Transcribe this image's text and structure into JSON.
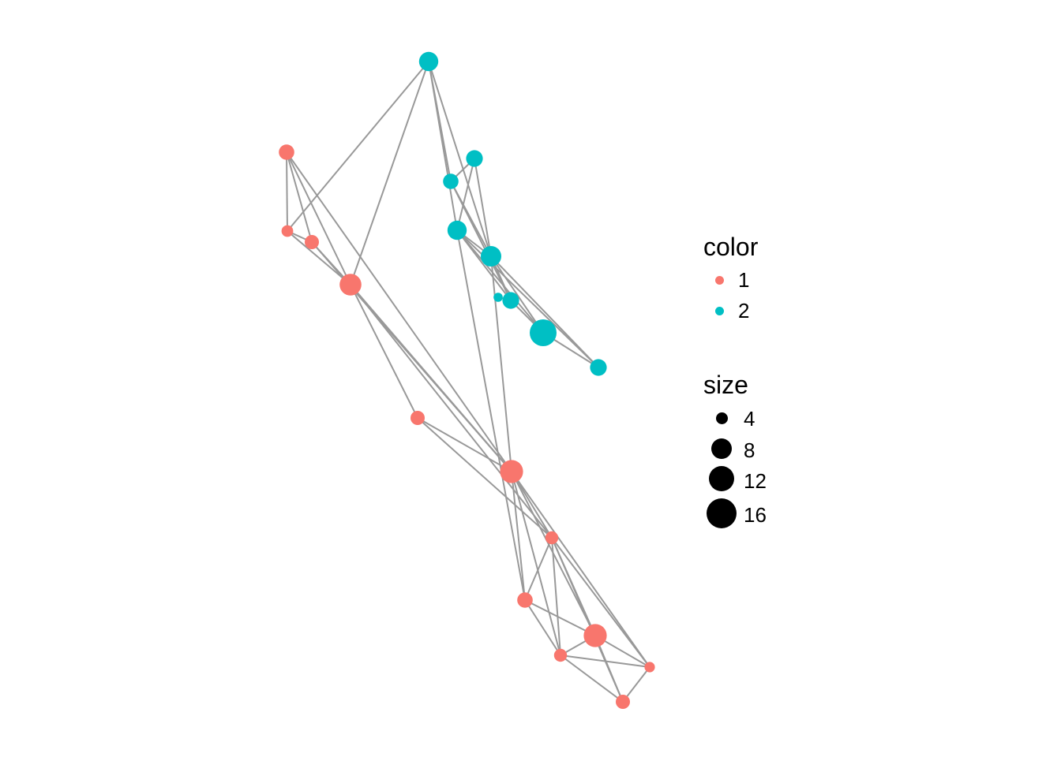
{
  "colors": {
    "group1": "#F8766D",
    "group2": "#00BFC4",
    "edge": "#999999",
    "size_key": "#000000"
  },
  "graph": {
    "nodes": [
      {
        "id": "n1",
        "group": 2,
        "size": 9
      },
      {
        "id": "n2",
        "group": 2,
        "size": 7
      },
      {
        "id": "n3",
        "group": 2,
        "size": 6
      },
      {
        "id": "n4",
        "group": 2,
        "size": 9
      },
      {
        "id": "n5",
        "group": 2,
        "size": 10
      },
      {
        "id": "n6",
        "group": 2,
        "size": 1
      },
      {
        "id": "n7",
        "group": 2,
        "size": 7
      },
      {
        "id": "n8",
        "group": 2,
        "size": 15
      },
      {
        "id": "n9",
        "group": 2,
        "size": 7
      },
      {
        "id": "n10",
        "group": 1,
        "size": 6
      },
      {
        "id": "n11",
        "group": 1,
        "size": 3
      },
      {
        "id": "n12",
        "group": 1,
        "size": 5
      },
      {
        "id": "n13",
        "group": 1,
        "size": 11
      },
      {
        "id": "n14",
        "group": 1,
        "size": 5
      },
      {
        "id": "n15",
        "group": 1,
        "size": 12
      },
      {
        "id": "n16",
        "group": 1,
        "size": 4
      },
      {
        "id": "n17",
        "group": 1,
        "size": 6
      },
      {
        "id": "n18",
        "group": 1,
        "size": 12
      },
      {
        "id": "n19",
        "group": 1,
        "size": 4
      },
      {
        "id": "n20",
        "group": 1,
        "size": 2
      },
      {
        "id": "n21",
        "group": 1,
        "size": 5
      }
    ],
    "edges": [
      [
        "n1",
        "n3"
      ],
      [
        "n1",
        "n5"
      ],
      [
        "n1",
        "n4"
      ],
      [
        "n1",
        "n11"
      ],
      [
        "n1",
        "n13"
      ],
      [
        "n2",
        "n3"
      ],
      [
        "n2",
        "n4"
      ],
      [
        "n2",
        "n5"
      ],
      [
        "n3",
        "n5"
      ],
      [
        "n3",
        "n7"
      ],
      [
        "n4",
        "n5"
      ],
      [
        "n4",
        "n7"
      ],
      [
        "n4",
        "n8"
      ],
      [
        "n4",
        "n9"
      ],
      [
        "n4",
        "n17"
      ],
      [
        "n5",
        "n7"
      ],
      [
        "n5",
        "n8"
      ],
      [
        "n5",
        "n9"
      ],
      [
        "n5",
        "n15"
      ],
      [
        "n6",
        "n7"
      ],
      [
        "n7",
        "n8"
      ],
      [
        "n8",
        "n9"
      ],
      [
        "n10",
        "n11"
      ],
      [
        "n10",
        "n12"
      ],
      [
        "n10",
        "n13"
      ],
      [
        "n10",
        "n15"
      ],
      [
        "n11",
        "n12"
      ],
      [
        "n11",
        "n13"
      ],
      [
        "n12",
        "n13"
      ],
      [
        "n12",
        "n15"
      ],
      [
        "n13",
        "n14"
      ],
      [
        "n13",
        "n15"
      ],
      [
        "n13",
        "n16"
      ],
      [
        "n14",
        "n15"
      ],
      [
        "n14",
        "n16"
      ],
      [
        "n15",
        "n16"
      ],
      [
        "n15",
        "n17"
      ],
      [
        "n15",
        "n19"
      ],
      [
        "n15",
        "n18"
      ],
      [
        "n15",
        "n20"
      ],
      [
        "n16",
        "n17"
      ],
      [
        "n16",
        "n18"
      ],
      [
        "n16",
        "n19"
      ],
      [
        "n16",
        "n20"
      ],
      [
        "n16",
        "n21"
      ],
      [
        "n17",
        "n18"
      ],
      [
        "n17",
        "n19"
      ],
      [
        "n18",
        "n19"
      ],
      [
        "n18",
        "n20"
      ],
      [
        "n18",
        "n21"
      ],
      [
        "n19",
        "n20"
      ],
      [
        "n19",
        "n21"
      ],
      [
        "n20",
        "n21"
      ]
    ]
  },
  "legend": {
    "color": {
      "title": "color",
      "items": [
        {
          "label": "1",
          "color": "#F8766D"
        },
        {
          "label": "2",
          "color": "#00BFC4"
        }
      ]
    },
    "size": {
      "title": "size",
      "items": [
        {
          "label": "4",
          "size": 4
        },
        {
          "label": "8",
          "size": 8
        },
        {
          "label": "12",
          "size": 12
        },
        {
          "label": "16",
          "size": 16
        }
      ]
    }
  }
}
